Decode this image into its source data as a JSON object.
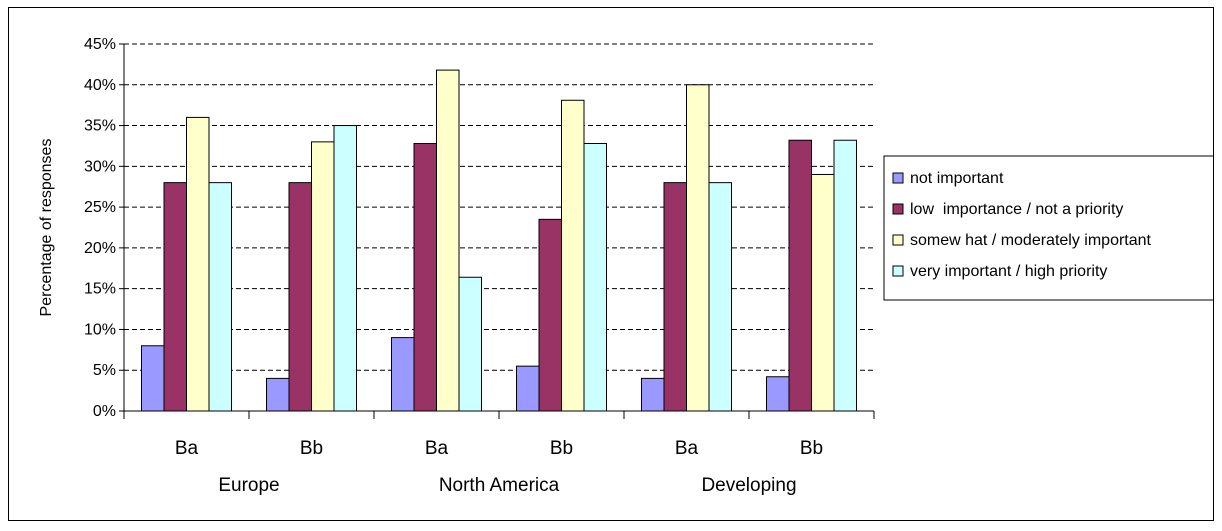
{
  "chart_data": {
    "type": "bar",
    "title": "",
    "ylabel": "Percentage of responses",
    "xlabel": "",
    "ylim": [
      0,
      45
    ],
    "y_ticks": [
      "0%",
      "5%",
      "10%",
      "15%",
      "20%",
      "25%",
      "30%",
      "35%",
      "40%",
      "45%"
    ],
    "y_tick_values": [
      0,
      5,
      10,
      15,
      20,
      25,
      30,
      35,
      40,
      45
    ],
    "categories": [
      "Ba",
      "Bb",
      "Ba",
      "Bb",
      "Ba",
      "Bb"
    ],
    "groups": [
      "Europe",
      "North America",
      "Developing"
    ],
    "grid": "horizontal dashed",
    "legend_position": "right",
    "series": [
      {
        "name": "not important",
        "color": "#9999ff",
        "values": [
          8,
          4,
          9,
          5.5,
          4,
          4.2
        ]
      },
      {
        "name": "low  importance / not a priority",
        "color": "#993366",
        "values": [
          28,
          28,
          32.8,
          23.5,
          28,
          33.2
        ]
      },
      {
        "name": "somew hat / moderately important",
        "color": "#ffffcc",
        "values": [
          36,
          33,
          41.8,
          38.1,
          40,
          29
        ]
      },
      {
        "name": "very important / high priority",
        "color": "#ccffff",
        "values": [
          28,
          35,
          16.4,
          32.8,
          28,
          33.2
        ]
      }
    ]
  }
}
